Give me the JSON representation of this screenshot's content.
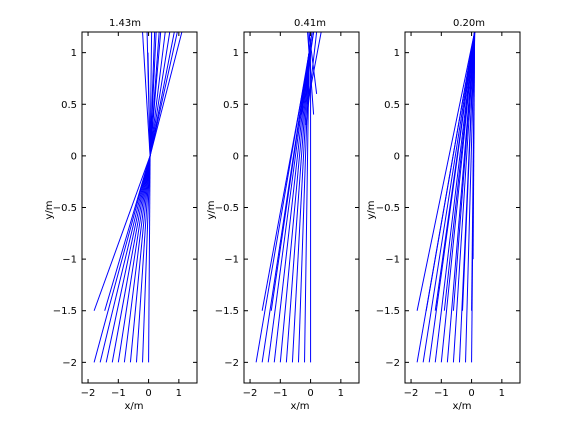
{
  "chart_data": [
    {
      "type": "line",
      "title": "1.43m",
      "xlabel": "x/m",
      "ylabel": "y/m",
      "xlim": [
        -2.2,
        1.6
      ],
      "ylim": [
        -2.2,
        1.2
      ],
      "xticks": [
        -2,
        -1,
        0,
        1
      ],
      "yticks": [
        -2,
        -1.5,
        -1,
        -0.5,
        0,
        0.5,
        1
      ],
      "xtick_labels": [
        "−2",
        "−1",
        "0",
        "1"
      ],
      "ytick_labels": [
        "−2",
        "−1.5",
        "−1",
        "−0.5",
        "0",
        "0.5",
        "1"
      ],
      "grid": false,
      "line_color": "#0000ff",
      "series": [
        {
          "x": [
            -1.8,
            0.05
          ],
          "y": [
            -2.0,
            0.0
          ]
        },
        {
          "x": [
            -1.6,
            0.05
          ],
          "y": [
            -2.0,
            0.0
          ]
        },
        {
          "x": [
            -1.4,
            0.05
          ],
          "y": [
            -2.0,
            0.0
          ]
        },
        {
          "x": [
            -1.2,
            0.05
          ],
          "y": [
            -2.0,
            0.0
          ]
        },
        {
          "x": [
            -1.0,
            0.05
          ],
          "y": [
            -2.0,
            0.0
          ]
        },
        {
          "x": [
            -0.8,
            0.05
          ],
          "y": [
            -2.0,
            0.0
          ]
        },
        {
          "x": [
            -0.6,
            0.05
          ],
          "y": [
            -2.0,
            0.0
          ]
        },
        {
          "x": [
            -0.4,
            0.05
          ],
          "y": [
            -2.0,
            0.0
          ]
        },
        {
          "x": [
            -0.2,
            0.05
          ],
          "y": [
            -2.0,
            0.0
          ]
        },
        {
          "x": [
            0.0,
            0.05
          ],
          "y": [
            -2.0,
            0.0
          ]
        },
        {
          "x": [
            -1.8,
            0.05
          ],
          "y": [
            -1.5,
            0.0
          ]
        },
        {
          "x": [
            -1.45,
            0.05
          ],
          "y": [
            -1.5,
            0.0
          ]
        },
        {
          "x": [
            0.05,
            0.1
          ],
          "y": [
            0.0,
            1.2
          ]
        },
        {
          "x": [
            0.05,
            0.25
          ],
          "y": [
            0.0,
            1.2
          ]
        },
        {
          "x": [
            0.05,
            0.4
          ],
          "y": [
            0.0,
            1.2
          ]
        },
        {
          "x": [
            0.05,
            0.55
          ],
          "y": [
            0.0,
            1.2
          ]
        },
        {
          "x": [
            0.05,
            0.7
          ],
          "y": [
            0.0,
            1.2
          ]
        },
        {
          "x": [
            0.05,
            0.85
          ],
          "y": [
            0.0,
            1.2
          ]
        },
        {
          "x": [
            0.05,
            0.95
          ],
          "y": [
            0.0,
            1.2
          ]
        },
        {
          "x": [
            0.05,
            1.1
          ],
          "y": [
            0.0,
            1.2
          ]
        },
        {
          "x": [
            -0.2,
            0.05
          ],
          "y": [
            1.2,
            0.0
          ]
        },
        {
          "x": [
            -0.05,
            0.05
          ],
          "y": [
            1.2,
            0.0
          ]
        },
        {
          "x": [
            -0.02,
            0.05
          ],
          "y": [
            1.0,
            0.0
          ]
        },
        {
          "x": [
            0.2,
            0.05
          ],
          "y": [
            1.2,
            0.0
          ]
        },
        {
          "x": [
            0.35,
            0.05
          ],
          "y": [
            1.2,
            0.0
          ]
        }
      ]
    },
    {
      "type": "line",
      "title": "0.41m",
      "xlabel": "x/m",
      "ylabel": "y/m",
      "xlim": [
        -2.2,
        1.6
      ],
      "ylim": [
        -2.2,
        1.2
      ],
      "xticks": [
        -2,
        -1,
        0,
        1
      ],
      "yticks": [
        -2,
        -1.5,
        -1,
        -0.5,
        0,
        0.5,
        1
      ],
      "xtick_labels": [
        "−2",
        "−1",
        "0",
        "1"
      ],
      "ytick_labels": [
        "−2",
        "−1.5",
        "−1",
        "−0.5",
        "0",
        "0.5",
        "1"
      ],
      "grid": false,
      "line_color": "#0000ff",
      "series": [
        {
          "x": [
            -1.8,
            -0.05
          ],
          "y": [
            -2.0,
            1.0
          ]
        },
        {
          "x": [
            -1.6,
            -0.05
          ],
          "y": [
            -2.0,
            1.0
          ]
        },
        {
          "x": [
            -1.4,
            -0.05
          ],
          "y": [
            -2.0,
            1.0
          ]
        },
        {
          "x": [
            -1.2,
            -0.05
          ],
          "y": [
            -2.0,
            1.0
          ]
        },
        {
          "x": [
            -1.0,
            -0.05
          ],
          "y": [
            -2.0,
            1.0
          ]
        },
        {
          "x": [
            -0.8,
            -0.05
          ],
          "y": [
            -2.0,
            1.0
          ]
        },
        {
          "x": [
            -0.6,
            -0.05
          ],
          "y": [
            -2.0,
            1.0
          ]
        },
        {
          "x": [
            -0.4,
            -0.05
          ],
          "y": [
            -2.0,
            1.0
          ]
        },
        {
          "x": [
            -0.2,
            -0.05
          ],
          "y": [
            -2.0,
            1.0
          ]
        },
        {
          "x": [
            0.0,
            0.0
          ],
          "y": [
            -2.0,
            1.0
          ]
        },
        {
          "x": [
            -1.6,
            0.1
          ],
          "y": [
            -1.5,
            1.2
          ]
        },
        {
          "x": [
            -1.3,
            0.05
          ],
          "y": [
            -1.5,
            1.2
          ]
        },
        {
          "x": [
            -0.15,
            0.2
          ],
          "y": [
            0.3,
            1.2
          ]
        },
        {
          "x": [
            -0.1,
            0.35
          ],
          "y": [
            0.5,
            1.2
          ]
        },
        {
          "x": [
            -0.3,
            0.1
          ],
          "y": [
            0.4,
            1.2
          ]
        },
        {
          "x": [
            0.1,
            -0.1
          ],
          "y": [
            0.4,
            1.2
          ]
        },
        {
          "x": [
            0.2,
            -0.05
          ],
          "y": [
            0.6,
            1.2
          ]
        },
        {
          "x": [
            -0.05,
            -0.05
          ],
          "y": [
            0.6,
            1.2
          ]
        }
      ]
    },
    {
      "type": "line",
      "title": "0.20m",
      "xlabel": "x/m",
      "ylabel": "y/m",
      "xlim": [
        -2.2,
        1.6
      ],
      "ylim": [
        -2.2,
        1.2
      ],
      "xticks": [
        -2,
        -1,
        0,
        1
      ],
      "yticks": [
        -2,
        -1.5,
        -1,
        -0.5,
        0,
        0.5,
        1
      ],
      "xtick_labels": [
        "−2",
        "−1",
        "0",
        "1"
      ],
      "ytick_labels": [
        "−2",
        "−1.5",
        "−1",
        "−0.5",
        "0",
        "0.5",
        "1"
      ],
      "grid": false,
      "line_color": "#0000ff",
      "series": [
        {
          "x": [
            -1.8,
            0.1
          ],
          "y": [
            -2.0,
            1.2
          ]
        },
        {
          "x": [
            -1.6,
            0.1
          ],
          "y": [
            -2.0,
            1.2
          ]
        },
        {
          "x": [
            -1.4,
            0.1
          ],
          "y": [
            -2.0,
            1.2
          ]
        },
        {
          "x": [
            -1.2,
            0.1
          ],
          "y": [
            -2.0,
            1.2
          ]
        },
        {
          "x": [
            -1.0,
            0.1
          ],
          "y": [
            -2.0,
            1.2
          ]
        },
        {
          "x": [
            -0.8,
            0.1
          ],
          "y": [
            -2.0,
            1.2
          ]
        },
        {
          "x": [
            -0.6,
            0.1
          ],
          "y": [
            -2.0,
            1.2
          ]
        },
        {
          "x": [
            -0.4,
            0.1
          ],
          "y": [
            -2.0,
            1.2
          ]
        },
        {
          "x": [
            -0.2,
            0.1
          ],
          "y": [
            -2.0,
            1.2
          ]
        },
        {
          "x": [
            0.0,
            0.1
          ],
          "y": [
            -2.0,
            1.2
          ]
        },
        {
          "x": [
            -1.8,
            0.1
          ],
          "y": [
            -1.5,
            1.2
          ]
        },
        {
          "x": [
            -1.5,
            0.1
          ],
          "y": [
            -1.5,
            1.2
          ]
        },
        {
          "x": [
            -1.2,
            0.1
          ],
          "y": [
            -1.5,
            1.2
          ]
        },
        {
          "x": [
            -0.9,
            0.1
          ],
          "y": [
            -1.5,
            1.2
          ]
        },
        {
          "x": [
            -0.6,
            0.1
          ],
          "y": [
            -1.5,
            1.2
          ]
        },
        {
          "x": [
            -0.3,
            0.1
          ],
          "y": [
            -1.5,
            1.2
          ]
        },
        {
          "x": [
            0.0,
            0.1
          ],
          "y": [
            -1.5,
            1.2
          ]
        },
        {
          "x": [
            0.05,
            0.1
          ],
          "y": [
            -1.0,
            1.2
          ]
        }
      ]
    }
  ]
}
